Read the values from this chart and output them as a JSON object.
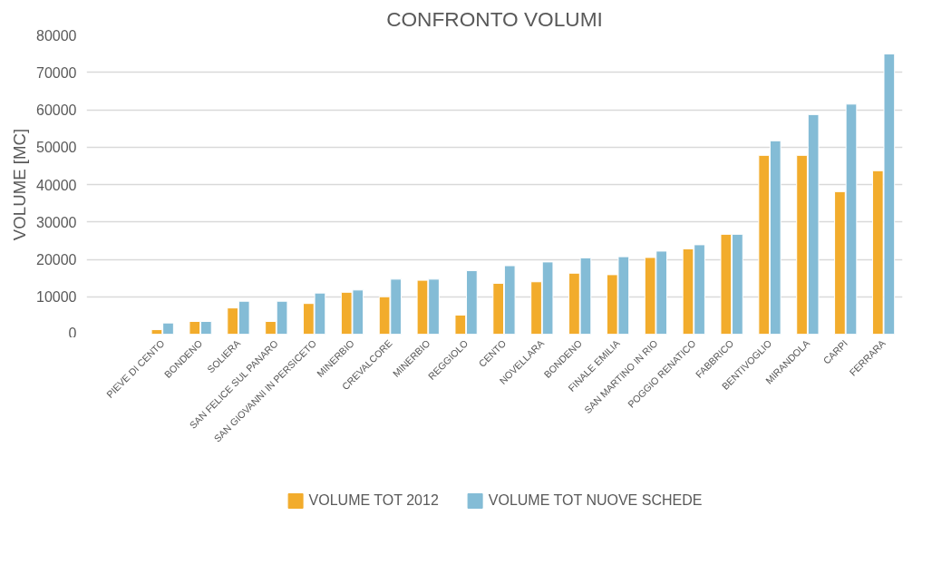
{
  "chart_data": {
    "type": "bar",
    "title": "CONFRONTO VOLUMI",
    "ylabel": "VOLUME [MC]",
    "categories": [
      "PIEVE DI CENTO",
      "BONDENO",
      "SOLIERA",
      "SAN FELICE SUL PANARO",
      "SAN GIOVANNI IN PERSICETO",
      "MINERBIO",
      "CREVALCORE",
      "MINERBIO",
      "REGGIOLO",
      "CENTO",
      "NOVELLARA",
      "BONDENO",
      "FINALE EMILIA",
      "SAN MARTINO IN RIO",
      "POGGIO RENATICO",
      "FABBRICO",
      "BENTIVOGLIO",
      "MIRANDOLA",
      "CARPI",
      "FERRARA"
    ],
    "series": [
      {
        "name": "VOLUME TOT 2012",
        "color": "#f2ac2c",
        "values": [
          1200,
          3400,
          7000,
          3400,
          8200,
          11200,
          10000,
          14400,
          5100,
          13600,
          14000,
          16300,
          15900,
          20500,
          22800,
          26700,
          47800,
          47800,
          38100,
          43700
        ]
      },
      {
        "name": "VOLUME TOT NUOVE SCHEDE",
        "color": "#84bcd6",
        "values": [
          3000,
          3400,
          8800,
          8800,
          11000,
          11800,
          14700,
          14700,
          17000,
          18300,
          19300,
          20400,
          20700,
          22200,
          23900,
          26700,
          51700,
          58700,
          61500,
          74900
        ]
      }
    ],
    "ylim": [
      0,
      80000
    ],
    "yticks": [
      0,
      10000,
      20000,
      30000,
      40000,
      50000,
      60000,
      70000,
      80000
    ],
    "grid": "y",
    "legend": "bottom"
  }
}
